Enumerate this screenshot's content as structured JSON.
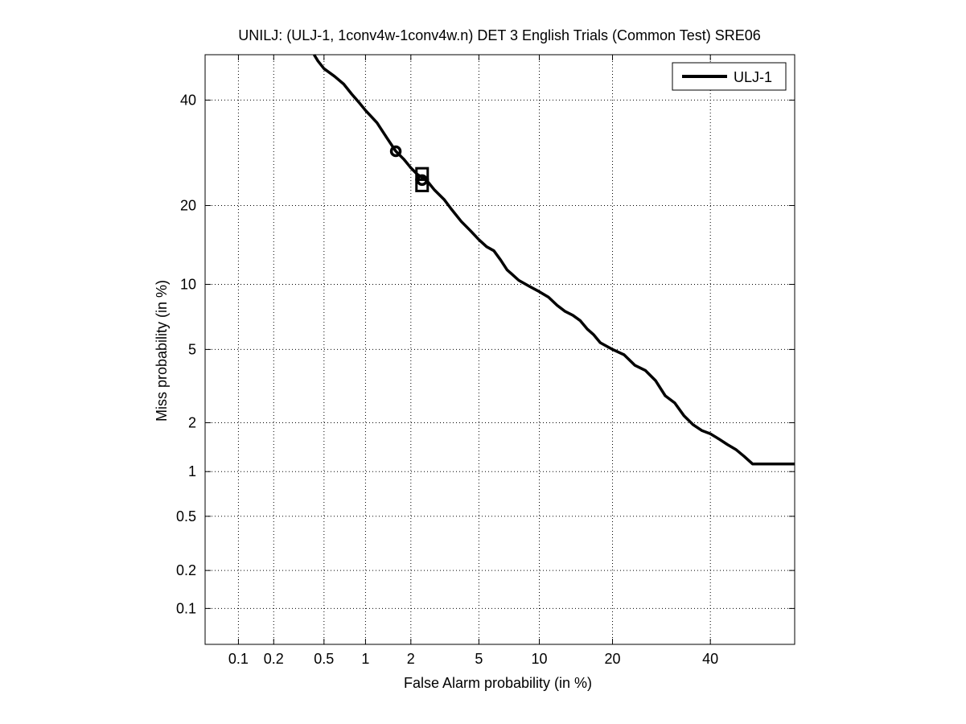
{
  "chart_data": {
    "type": "line",
    "title": "UNILJ: (ULJ-1, 1conv4w-1conv4w.n) DET 3 English Trials (Common Test) SRE06",
    "xlabel": "False Alarm probability (in %)",
    "ylabel": "Miss probability (in %)",
    "x_scale": "normal-deviate (probit)",
    "y_scale": "normal-deviate (probit)",
    "xlim": [
      0.05,
      60
    ],
    "ylim": [
      0.05,
      50
    ],
    "grid": true,
    "legend_position": "top-right",
    "x_ticks": [
      {
        "value": 0.1,
        "label": "0.1"
      },
      {
        "value": 0.2,
        "label": "0.2"
      },
      {
        "value": 0.5,
        "label": "0.5"
      },
      {
        "value": 1,
        "label": "1"
      },
      {
        "value": 2,
        "label": "2"
      },
      {
        "value": 5,
        "label": "5"
      },
      {
        "value": 10,
        "label": "10"
      },
      {
        "value": 20,
        "label": "20"
      },
      {
        "value": 40,
        "label": "40"
      }
    ],
    "y_ticks": [
      {
        "value": 0.1,
        "label": "0.1"
      },
      {
        "value": 0.2,
        "label": "0.2"
      },
      {
        "value": 0.5,
        "label": "0.5"
      },
      {
        "value": 1,
        "label": "1"
      },
      {
        "value": 2,
        "label": "2"
      },
      {
        "value": 5,
        "label": "5"
      },
      {
        "value": 10,
        "label": "10"
      },
      {
        "value": 20,
        "label": "20"
      },
      {
        "value": 40,
        "label": "40"
      }
    ],
    "series": [
      {
        "name": "ULJ-1",
        "color": "#000000",
        "points": [
          [
            0.42,
            50
          ],
          [
            0.45,
            48.6
          ],
          [
            0.5,
            46.9
          ],
          [
            0.6,
            45.2
          ],
          [
            0.7,
            43.5
          ],
          [
            0.8,
            41.3
          ],
          [
            0.9,
            39.5
          ],
          [
            1.0,
            37.8
          ],
          [
            1.2,
            35.2
          ],
          [
            1.4,
            32.1
          ],
          [
            1.6,
            29.5
          ],
          [
            1.8,
            28.0
          ],
          [
            2.0,
            26.4
          ],
          [
            2.2,
            25.2
          ],
          [
            2.5,
            24.2
          ],
          [
            2.8,
            22.5
          ],
          [
            3.2,
            20.9
          ],
          [
            3.5,
            19.5
          ],
          [
            4.0,
            17.6
          ],
          [
            4.5,
            16.3
          ],
          [
            5.0,
            15.1
          ],
          [
            5.5,
            14.2
          ],
          [
            6.0,
            13.7
          ],
          [
            6.5,
            12.6
          ],
          [
            7.0,
            11.5
          ],
          [
            8.0,
            10.4
          ],
          [
            9.0,
            9.8
          ],
          [
            10.0,
            9.3
          ],
          [
            11.0,
            8.8
          ],
          [
            12.0,
            8.1
          ],
          [
            13.0,
            7.6
          ],
          [
            14.0,
            7.3
          ],
          [
            15.0,
            6.9
          ],
          [
            16.0,
            6.3
          ],
          [
            17.0,
            5.9
          ],
          [
            18.0,
            5.4
          ],
          [
            20.0,
            5.0
          ],
          [
            22.0,
            4.7
          ],
          [
            24.0,
            4.15
          ],
          [
            26.0,
            3.9
          ],
          [
            28.0,
            3.45
          ],
          [
            30.0,
            2.85
          ],
          [
            32.0,
            2.6
          ],
          [
            34.0,
            2.2
          ],
          [
            36.0,
            1.95
          ],
          [
            38.0,
            1.8
          ],
          [
            40.0,
            1.72
          ],
          [
            42.0,
            1.6
          ],
          [
            44.0,
            1.48
          ],
          [
            46.0,
            1.38
          ],
          [
            48.0,
            1.25
          ],
          [
            50.0,
            1.12
          ],
          [
            60.0,
            1.12
          ]
        ]
      }
    ],
    "markers": [
      {
        "shape": "circle",
        "x": 1.6,
        "y": 29.5
      },
      {
        "shape": "square",
        "x": 2.35,
        "y": 25.3
      },
      {
        "shape": "square",
        "x": 2.35,
        "y": 23.3
      },
      {
        "shape": "circle",
        "x": 2.35,
        "y": 24.2
      }
    ]
  }
}
